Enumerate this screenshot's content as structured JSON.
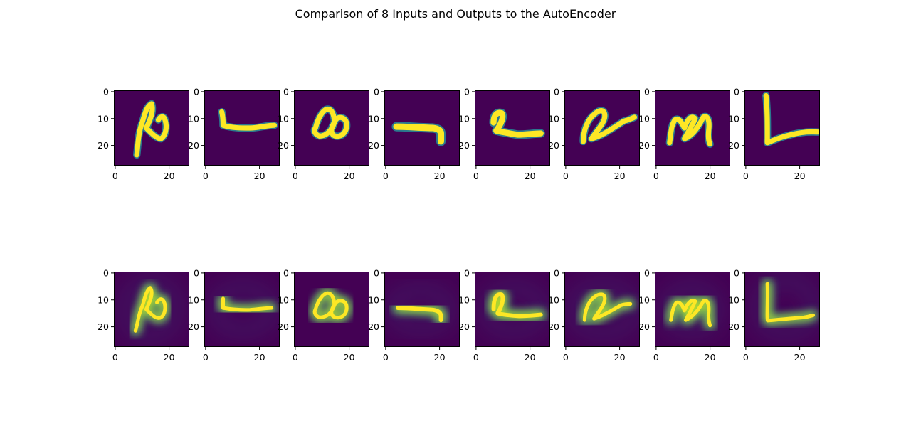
{
  "figure": {
    "title": "Comparison of 8 Inputs and Outputs to the AutoEncoder"
  },
  "colors": {
    "background": "#440154",
    "frame": "#000000",
    "colormap": "viridis"
  },
  "chart_data": {
    "type": "heatmap",
    "title": "Comparison of 8 Inputs and Outputs to the AutoEncoder",
    "grid": false,
    "image_size": [
      28,
      28
    ],
    "rows": 2,
    "cols": 8,
    "row_roles": [
      "input",
      "output"
    ],
    "x_ticks": [
      0,
      20
    ],
    "y_ticks": [
      0,
      10,
      20
    ],
    "xlim": [
      0,
      28
    ],
    "ylim": [
      28,
      0
    ],
    "panels": [
      {
        "row": 0,
        "col": 0,
        "shape": "input-0"
      },
      {
        "row": 0,
        "col": 1,
        "shape": "input-1"
      },
      {
        "row": 0,
        "col": 2,
        "shape": "input-2"
      },
      {
        "row": 0,
        "col": 3,
        "shape": "input-3"
      },
      {
        "row": 0,
        "col": 4,
        "shape": "input-4"
      },
      {
        "row": 0,
        "col": 5,
        "shape": "input-5"
      },
      {
        "row": 0,
        "col": 6,
        "shape": "input-6"
      },
      {
        "row": 0,
        "col": 7,
        "shape": "input-7"
      },
      {
        "row": 1,
        "col": 0,
        "shape": "output-0"
      },
      {
        "row": 1,
        "col": 1,
        "shape": "output-1"
      },
      {
        "row": 1,
        "col": 2,
        "shape": "output-2"
      },
      {
        "row": 1,
        "col": 3,
        "shape": "output-3"
      },
      {
        "row": 1,
        "col": 4,
        "shape": "output-4"
      },
      {
        "row": 1,
        "col": 5,
        "shape": "output-5"
      },
      {
        "row": 1,
        "col": 6,
        "shape": "output-6"
      },
      {
        "row": 1,
        "col": 7,
        "shape": "output-7"
      }
    ]
  }
}
